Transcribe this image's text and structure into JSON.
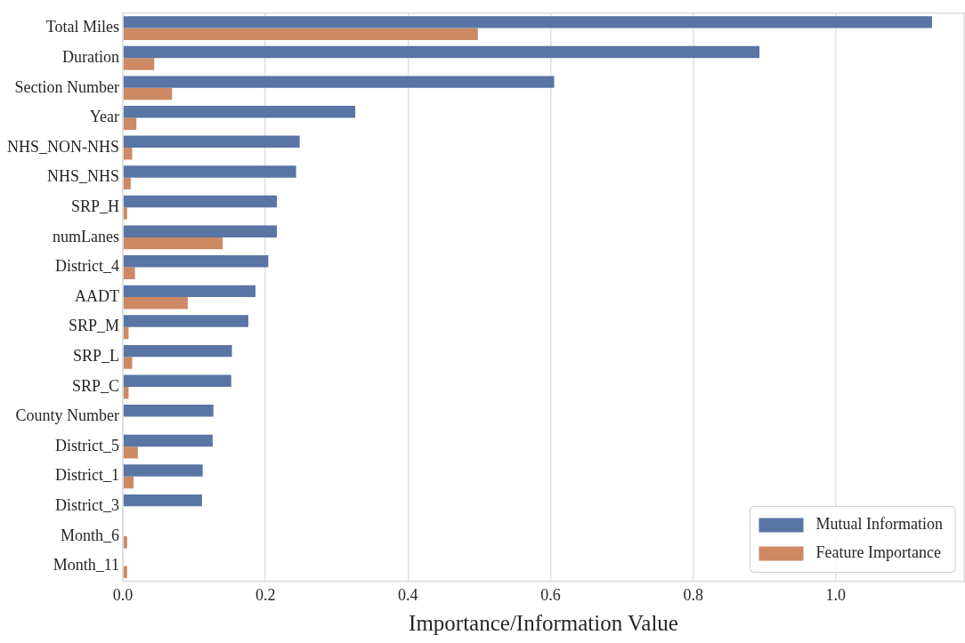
{
  "chart_data": {
    "type": "bar",
    "orientation": "horizontal",
    "xlabel": "Importance/Information Value",
    "categories": [
      "Total Miles",
      "Duration",
      "Section Number",
      "Year",
      "NHS_NON-NHS",
      "NHS_NHS",
      "SRP_H",
      "numLanes",
      "District_4",
      "AADT",
      "SRP_M",
      "SRP_L",
      "SRP_C",
      "County Number",
      "District_5",
      "District_1",
      "District_3",
      "Month_6",
      "Month_11"
    ],
    "series": [
      {
        "name": "Mutual Information",
        "color": "#5875a4",
        "values": [
          1.135,
          0.893,
          0.605,
          0.326,
          0.248,
          0.243,
          0.216,
          0.216,
          0.204,
          0.186,
          0.176,
          0.153,
          0.152,
          0.127,
          0.126,
          0.112,
          0.111,
          0,
          0
        ]
      },
      {
        "name": "Feature Importance",
        "color": "#cc8963",
        "values": [
          0.498,
          0.044,
          0.069,
          0.019,
          0.013,
          0.011,
          0.006,
          0.14,
          0.017,
          0.091,
          0.008,
          0.013,
          0.008,
          0,
          0.021,
          0.015,
          0,
          0.006,
          0.006
        ]
      }
    ],
    "xlim": [
      0,
      1.18
    ],
    "xticks": [
      {
        "value": 0,
        "label": "0.0"
      },
      {
        "value": 0.2,
        "label": "0.2"
      },
      {
        "value": 0.4,
        "label": "0.4"
      },
      {
        "value": 0.6,
        "label": "0.6"
      },
      {
        "value": 0.8,
        "label": "0.8"
      },
      {
        "value": 1,
        "label": "1.0"
      }
    ],
    "grid": "x",
    "legend": "bottom right"
  }
}
